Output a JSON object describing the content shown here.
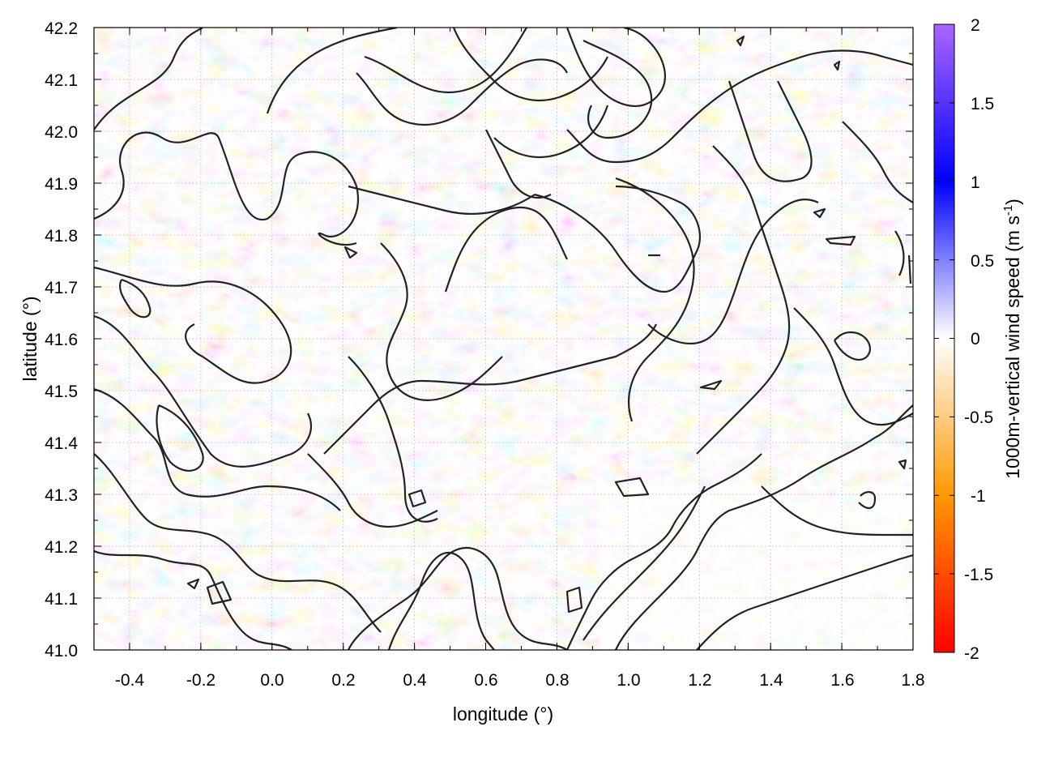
{
  "chart_data": {
    "type": "heatmap",
    "title": "",
    "xlabel": "longitude (°)",
    "ylabel": "latitude (°)",
    "xlim": [
      -0.5,
      1.8
    ],
    "ylim": [
      41.0,
      42.2
    ],
    "x_ticks": [
      "-0.4",
      "-0.2",
      "0.0",
      "0.2",
      "0.4",
      "0.6",
      "0.8",
      "1.0",
      "1.2",
      "1.4",
      "1.6",
      "1.8"
    ],
    "y_ticks": [
      "41.0",
      "41.1",
      "41.2",
      "41.3",
      "41.4",
      "41.5",
      "41.6",
      "41.7",
      "41.8",
      "41.9",
      "42.0",
      "42.1",
      "42.2"
    ],
    "grid": "dotted",
    "colorbar": {
      "label": "1000m-vertical wind speed (m s",
      "label_superscript": "-1",
      "label_suffix": ")",
      "range": [
        -2,
        2
      ],
      "ticks": [
        "2",
        "1.5",
        "1",
        "0.5",
        "0",
        "-0.5",
        "-1",
        "-1.5",
        "-2"
      ],
      "colors": [
        "#ff0000",
        "#ff9900",
        "#ffffff",
        "#0000ff",
        "#aa66ff"
      ],
      "position": "right"
    },
    "overlay": "black terrain contour lines",
    "contour_color": "#222222"
  }
}
